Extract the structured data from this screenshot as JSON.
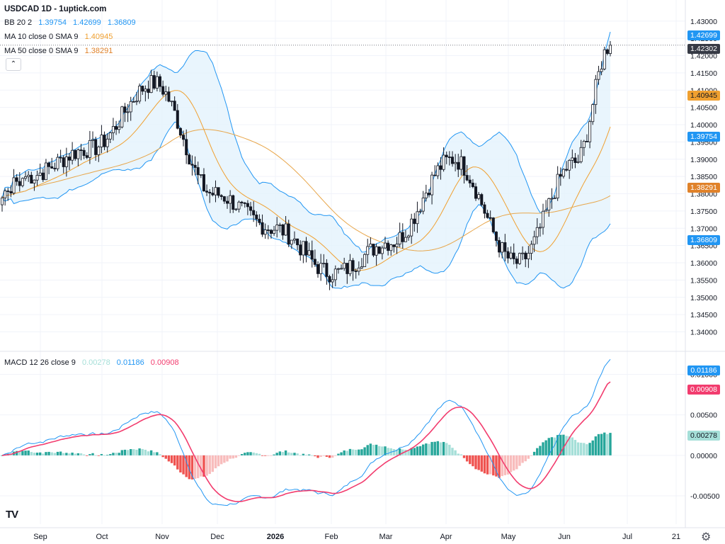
{
  "header": {
    "title": "USDCAD 1D - 1uptick.com",
    "bb": {
      "label": "BB 20 2",
      "basis": "1.39754",
      "upper": "1.42699",
      "lower": "1.36809"
    },
    "ma10": {
      "label": "MA 10 close 0 SMA 9",
      "value": "1.40945"
    },
    "ma50": {
      "label": "MA 50 close 0 SMA 9",
      "value": "1.38291"
    },
    "macd": {
      "label": "MACD 12 26 close 9",
      "hist": "0.00278",
      "macd": "0.01186",
      "signal": "0.00908"
    }
  },
  "colors": {
    "up": "#26a69a",
    "down": "#ef5350",
    "candle": "#131722",
    "bb": "#2196f3",
    "bb_fill": "#e3f2fd",
    "ma10": "#f0a030",
    "ma50": "#e8a64a",
    "macd": "#2196f3",
    "signal": "#f23c6e",
    "hist_up": "#26a69a",
    "hist_up_light": "#a5dfd8",
    "hist_down": "#ef5350",
    "hist_down_light": "#f8bcbc"
  },
  "price_tags": {
    "bb_upper": "1.42699",
    "last": "1.42302",
    "ma10": "1.40945",
    "bb_basis": "1.39754",
    "ma50": "1.38291",
    "bb_lower": "1.36809"
  },
  "macd_tags": {
    "macd": "0.01186",
    "signal": "0.00908",
    "hist": "0.00278"
  },
  "icons": {
    "collapse": "chevron-up-icon",
    "logo": "tradingview-logo",
    "settings": "gear-icon"
  },
  "chart_data": [
    {
      "type": "candlestick",
      "title": "USDCAD 1D - 1uptick.com",
      "x_tick_labels": [
        "Sep",
        "Oct",
        "Nov",
        "Dec",
        "2026",
        "Feb",
        "Mar",
        "Apr",
        "May",
        "Jun",
        "Jul",
        "21"
      ],
      "y_tick_labels": [
        "1.43000",
        "1.42500",
        "1.42000",
        "1.41500",
        "1.41000",
        "1.40500",
        "1.40000",
        "1.39500",
        "1.39000",
        "1.38500",
        "1.38000",
        "1.37500",
        "1.37000",
        "1.36500",
        "1.36000",
        "1.35500",
        "1.35000",
        "1.34500",
        "1.34000"
      ],
      "ylim": [
        1.336,
        1.432
      ],
      "approx_close_path": [
        [
          "Sep",
          1.385
        ],
        [
          "Oct",
          1.393
        ],
        [
          "Nov",
          1.412
        ],
        [
          "Dec",
          1.38
        ],
        [
          "2026",
          1.37
        ],
        [
          "Feb",
          1.357
        ],
        [
          "Mar",
          1.366
        ],
        [
          "Apr",
          1.39
        ],
        [
          "May",
          1.36
        ],
        [
          "Jun",
          1.389
        ],
        [
          "Jun (late)",
          1.423
        ]
      ],
      "last": 1.42302,
      "indicators": {
        "bb_upper": 1.42699,
        "bb_basis": 1.39754,
        "bb_lower": 1.36809,
        "ma10": 1.40945,
        "ma50": 1.38291
      }
    },
    {
      "type": "macd",
      "title": "MACD 12 26 close 9",
      "y_tick_labels": [
        "0.01000",
        "0.00500",
        "0.00000",
        "-0.00500"
      ],
      "ylim": [
        -0.0085,
        0.0125
      ],
      "macd": 0.01186,
      "signal": 0.00908,
      "histogram": 0.00278
    }
  ]
}
